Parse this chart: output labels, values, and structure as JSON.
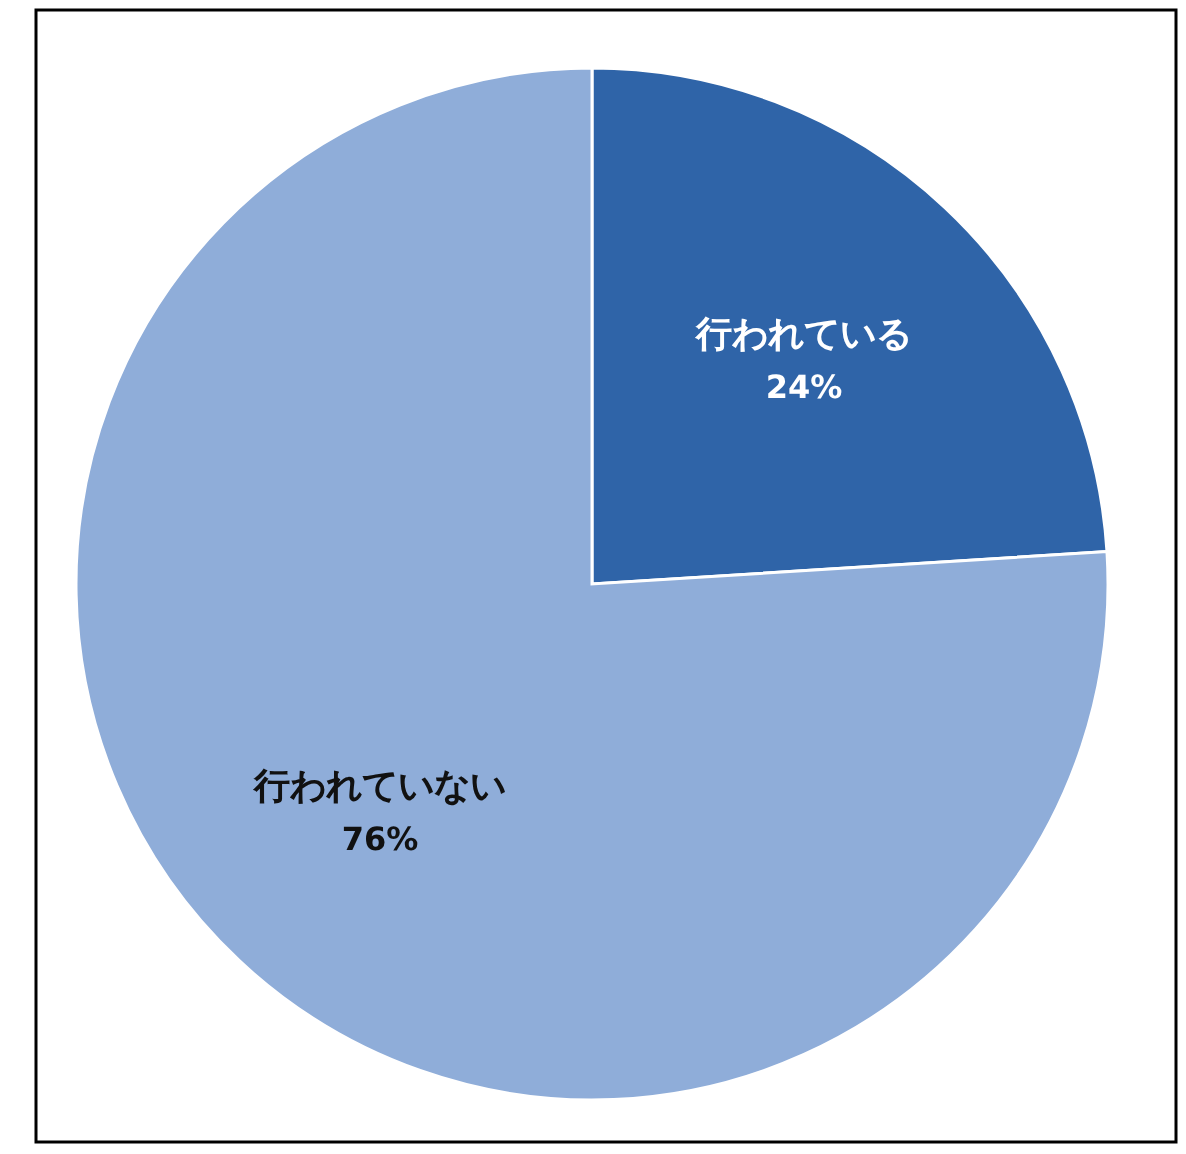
{
  "chart_data": {
    "type": "pie",
    "categories": [
      "行われている",
      "行われていない"
    ],
    "values": [
      24,
      76
    ],
    "colors": [
      "#2f64a8",
      "#8fadd9"
    ],
    "value_labels": [
      "24%",
      "76%"
    ]
  }
}
